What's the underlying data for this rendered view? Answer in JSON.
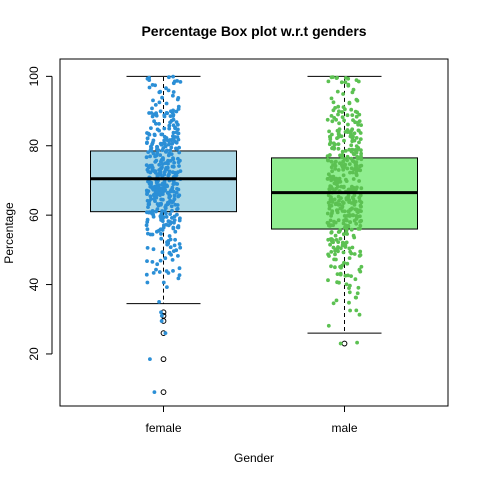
{
  "chart_data": {
    "type": "box",
    "title": "Percentage Box plot w.r.t genders",
    "xlabel": "Gender",
    "ylabel": "Percentage",
    "ylim": [
      5,
      105
    ],
    "yticks": [
      20,
      40,
      60,
      80,
      100
    ],
    "categories": [
      "female",
      "male"
    ],
    "grid": false,
    "legend": "none",
    "series": [
      {
        "category": "female",
        "box_color": "#add8e6",
        "point_color": "#2b8fd6",
        "whisker_low": 34.5,
        "q1": 61,
        "median": 70.5,
        "q3": 78.5,
        "whisker_high": 100,
        "outliers": [
          32,
          31,
          29.5,
          26,
          18.5,
          9
        ]
      },
      {
        "category": "male",
        "box_color": "#90ee90",
        "point_color": "#5cc152",
        "whisker_low": 26,
        "q1": 56,
        "median": 66.5,
        "q3": 76.5,
        "whisker_high": 100,
        "outliers": [
          23
        ]
      }
    ]
  }
}
